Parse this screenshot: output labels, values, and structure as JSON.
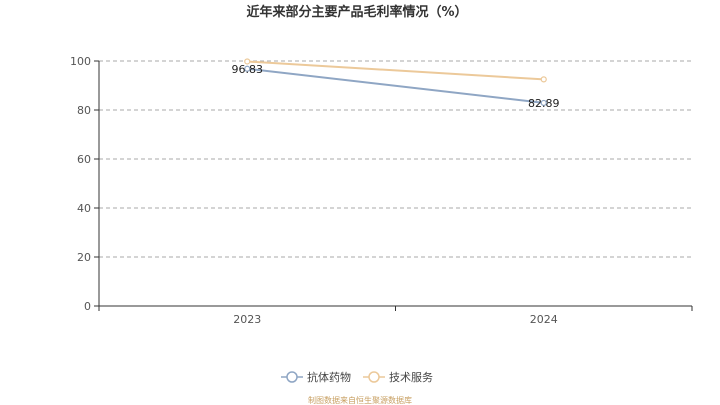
{
  "chart_data": {
    "type": "line",
    "title": "近年来部分主要产品毛利率情况（%）",
    "categories": [
      "2023",
      "2024"
    ],
    "series": [
      {
        "name": "抗体药物",
        "values": [
          96.83,
          82.89
        ],
        "color": "#8fa6c4",
        "labels": [
          "96.83",
          "82.89"
        ]
      },
      {
        "name": "技术服务",
        "values": [
          99.8,
          92.5
        ],
        "color": "#ecc99a",
        "labels": []
      }
    ],
    "ylim": [
      0,
      100
    ],
    "yticks": [
      "0",
      "20",
      "40",
      "60",
      "80",
      "100"
    ],
    "grid": true,
    "legend_position": "bottom"
  },
  "source_note": "制图数据来自恒生聚源数据库"
}
